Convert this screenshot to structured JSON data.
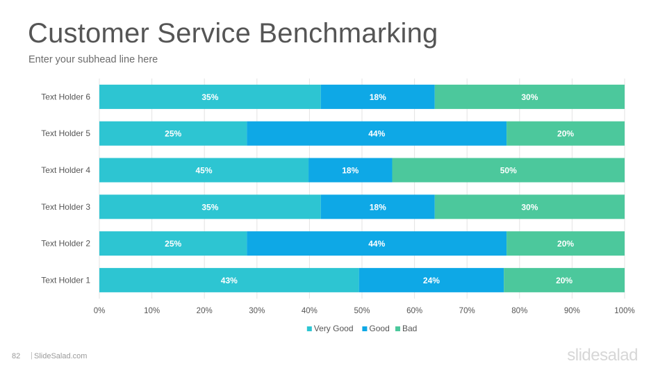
{
  "slide": {
    "title": "Customer Service Benchmarking",
    "subtitle": "Enter your subhead line here",
    "page_number": "82",
    "footer_separator": "|",
    "footer_site": "SlideSalad.com",
    "logo_text": "slidesalad"
  },
  "chart_data": {
    "type": "bar",
    "orientation": "horizontal",
    "stacked": "percent",
    "categories": [
      "Text Holder 6",
      "Text Holder 5",
      "Text Holder 4",
      "Text Holder 3",
      "Text Holder 2",
      "Text Holder 1"
    ],
    "series": [
      {
        "name": "Very Good",
        "color": "#2dc5d2",
        "values": [
          35,
          25,
          45,
          35,
          25,
          43
        ],
        "labels": [
          "35%",
          "25%",
          "45%",
          "35%",
          "25%",
          "43%"
        ]
      },
      {
        "name": "Good",
        "color": "#0ea8e6",
        "values": [
          18,
          44,
          18,
          18,
          44,
          24
        ],
        "labels": [
          "18%",
          "44%",
          "18%",
          "18%",
          "44%",
          "24%"
        ]
      },
      {
        "name": "Bad",
        "color": "#4cc89c",
        "values": [
          30,
          20,
          50,
          30,
          20,
          20
        ],
        "labels": [
          "30%",
          "20%",
          "50%",
          "30%",
          "20%",
          "20%"
        ]
      }
    ],
    "xlim": [
      0,
      100
    ],
    "xticks": [
      "0%",
      "10%",
      "20%",
      "30%",
      "40%",
      "50%",
      "60%",
      "70%",
      "80%",
      "90%",
      "100%"
    ],
    "grid": true,
    "legend_position": "bottom"
  }
}
